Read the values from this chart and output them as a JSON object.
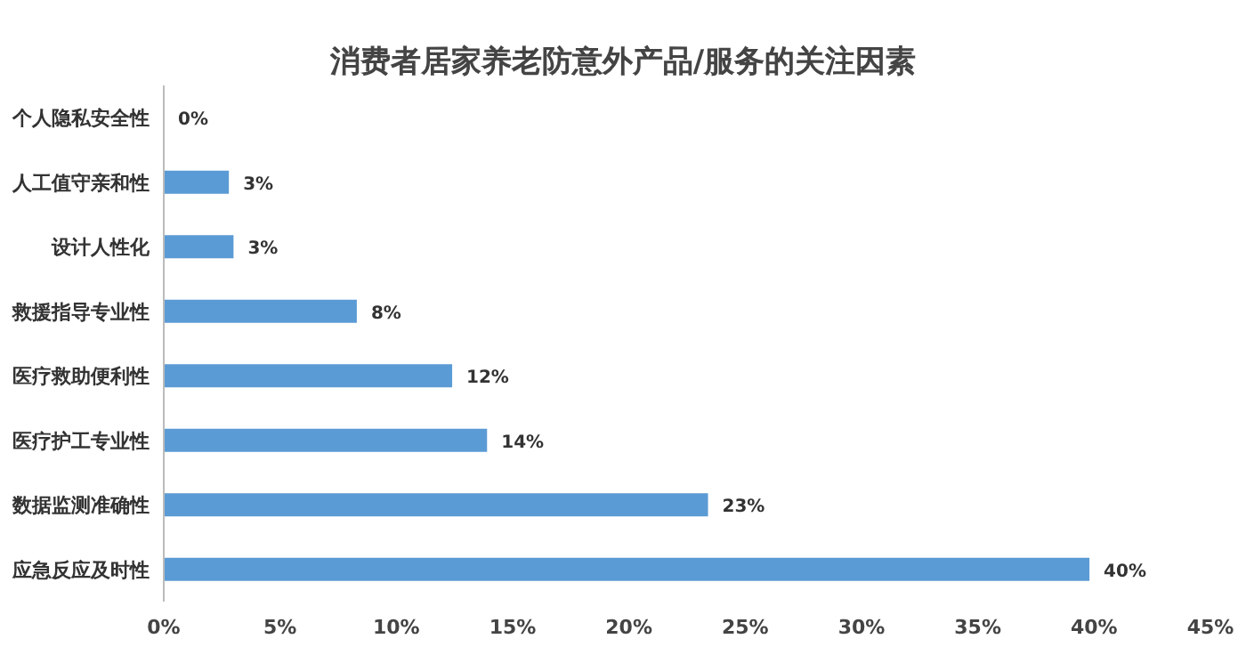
{
  "chart_data": {
    "type": "bar",
    "orientation": "horizontal",
    "title": "消费者居家养老防意外产品/服务的关注因素",
    "categories": [
      "个人隐私安全性",
      "人工值守亲和性",
      "设计人性化",
      "救援指导专业性",
      "医疗救助便利性",
      "医疗护工专业性",
      "数据监测准确性",
      "应急反应及时性"
    ],
    "values": [
      0,
      2.8,
      3,
      8.3,
      12.4,
      13.9,
      23.4,
      39.8
    ],
    "value_labels": [
      "0%",
      "3%",
      "3%",
      "8%",
      "12%",
      "14%",
      "23%",
      "40%"
    ],
    "color": "#5b9bd5",
    "xlim": [
      0,
      45
    ],
    "xticks": [
      {
        "value": 0,
        "label": "0%"
      },
      {
        "value": 5,
        "label": "5%"
      },
      {
        "value": 10,
        "label": "10%"
      },
      {
        "value": 15,
        "label": "15%"
      },
      {
        "value": 20,
        "label": "20%"
      },
      {
        "value": 25,
        "label": "25%"
      },
      {
        "value": 30,
        "label": "30%"
      },
      {
        "value": 35,
        "label": "35%"
      },
      {
        "value": 40,
        "label": "40%"
      },
      {
        "value": 45,
        "label": "45%"
      }
    ]
  }
}
